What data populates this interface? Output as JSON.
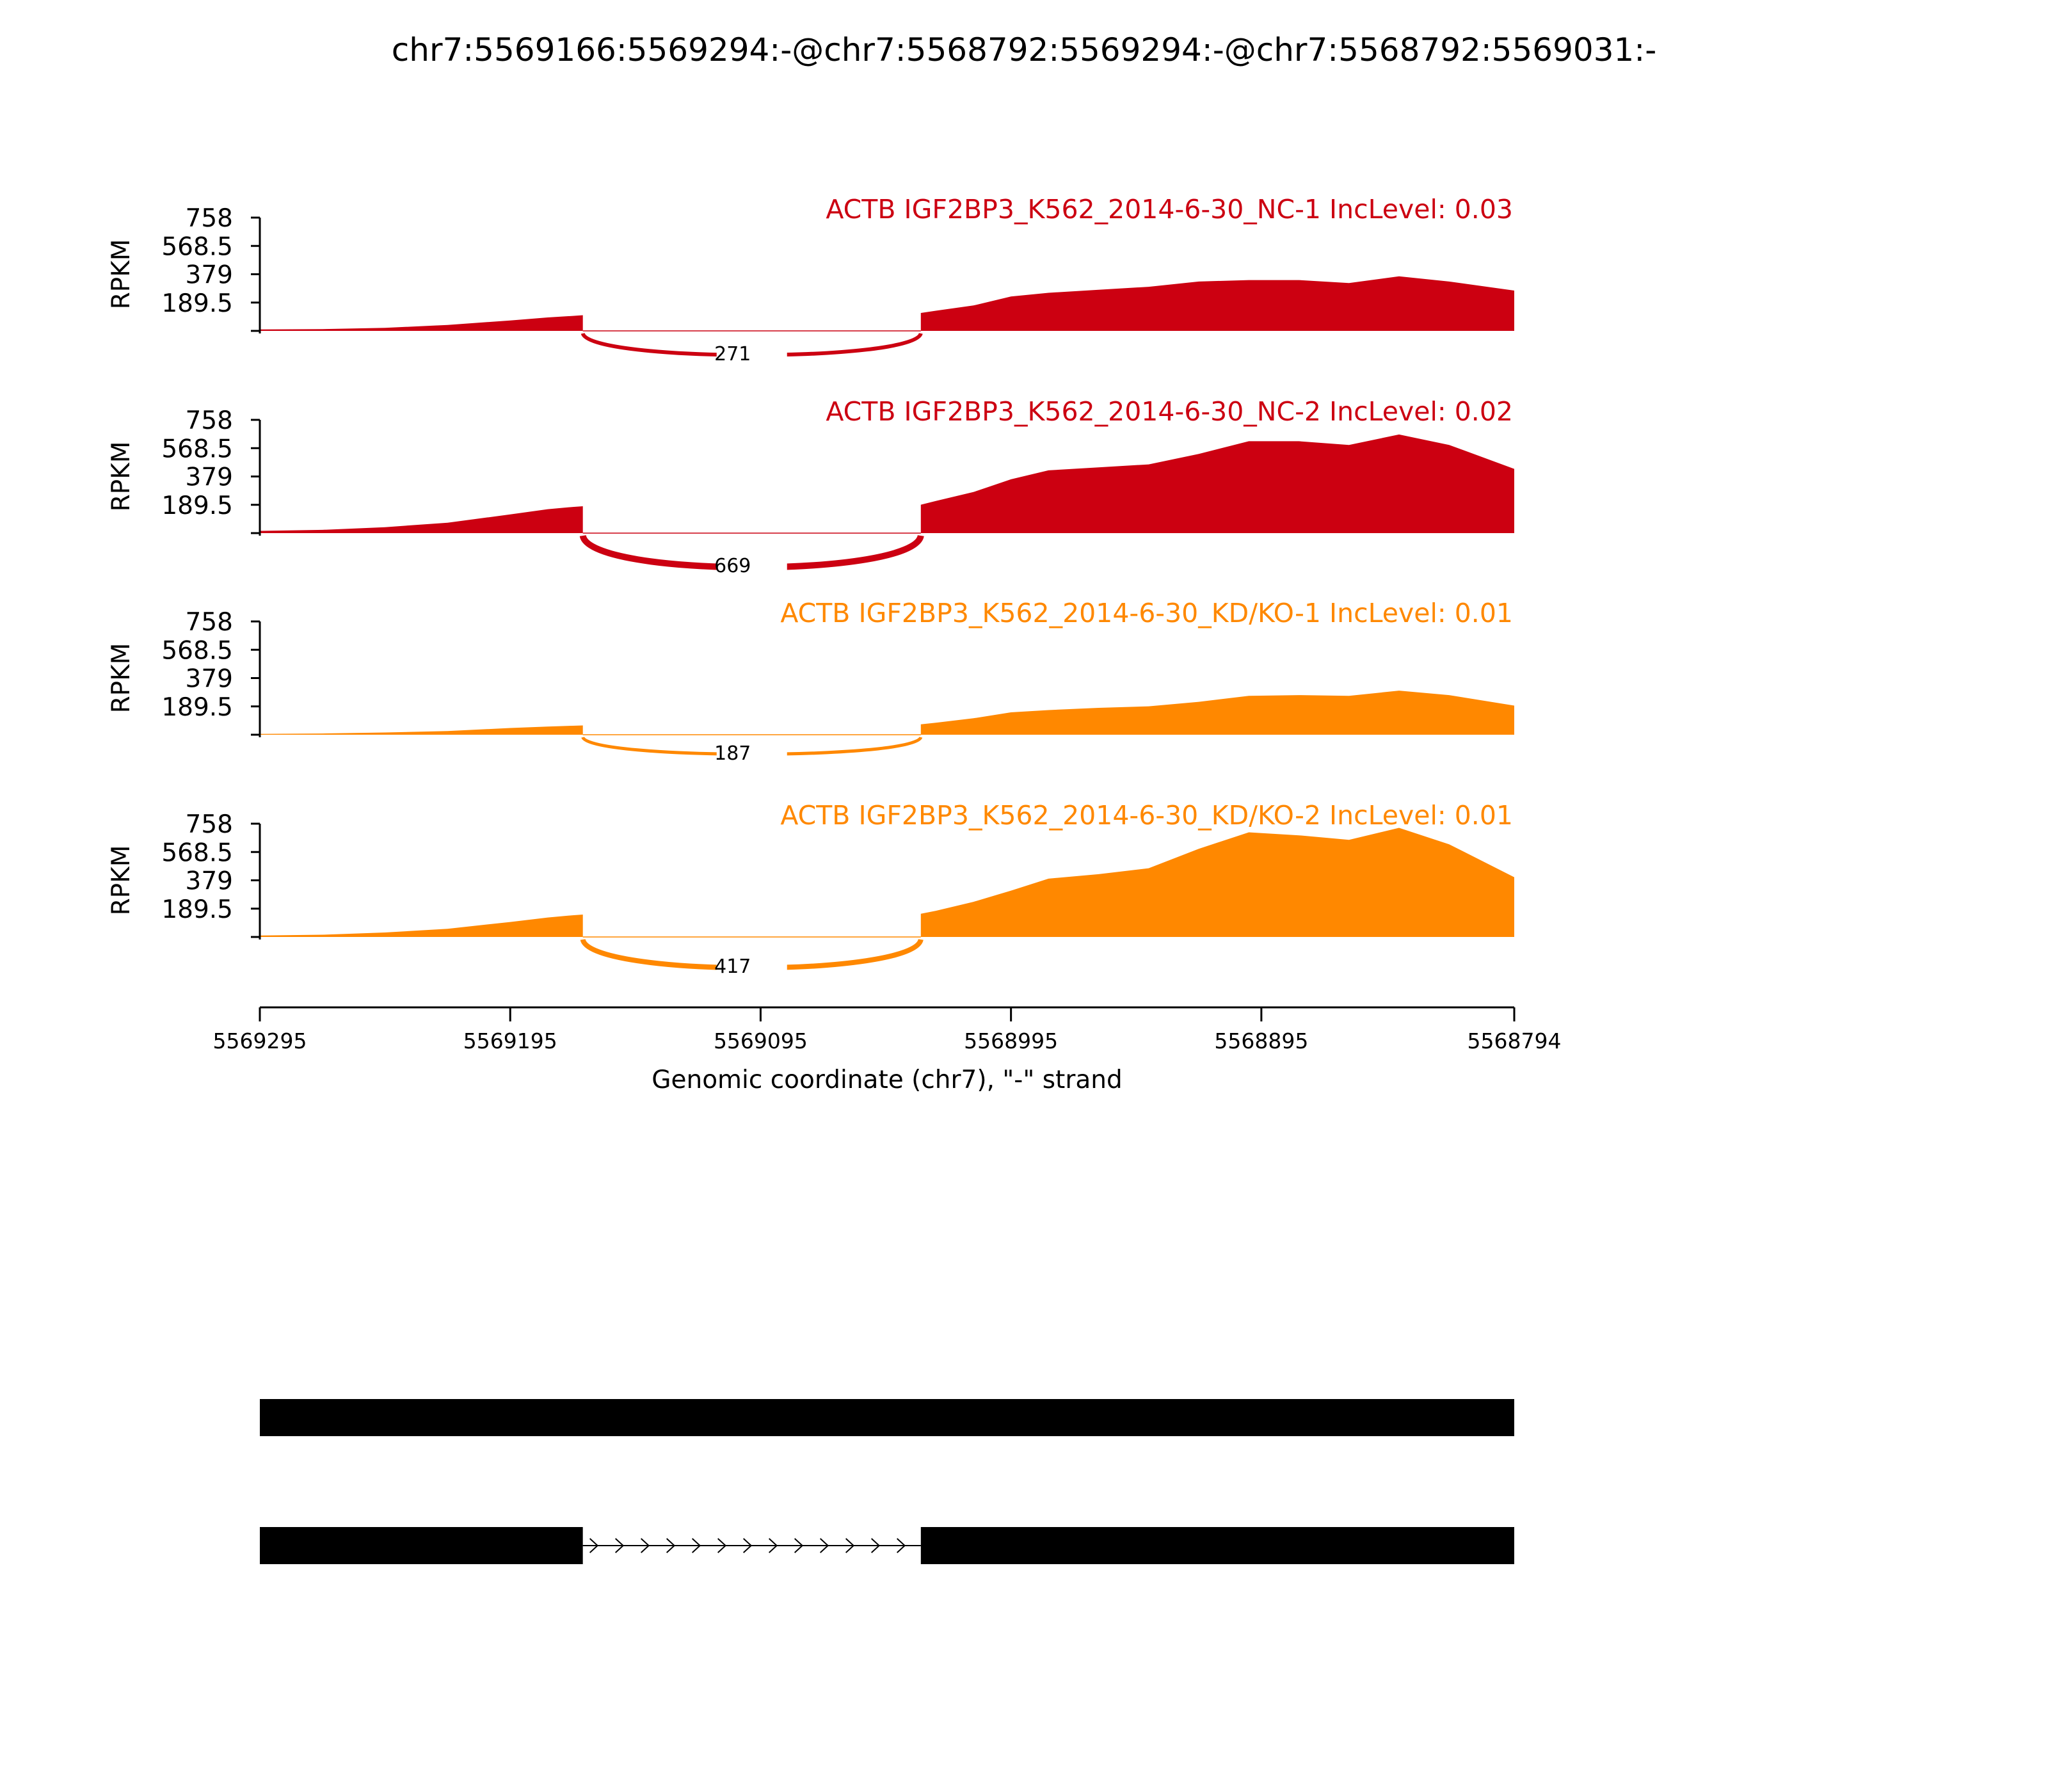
{
  "chart_data": {
    "type": "area",
    "title": "chr7:5569166:5569294:-@chr7:5568792:5569294:-@chr7:5568792:5569031:-",
    "xlabel": "Genomic coordinate (chr7), \"-\" strand",
    "ylabel": "RPKM",
    "x_ticks": [
      "5569295",
      "5569195",
      "5569095",
      "5568995",
      "5568895",
      "5568794"
    ],
    "xlim": [
      5569295,
      5568794
    ],
    "ylim": [
      0,
      758
    ],
    "y_ticks": [
      "189.5",
      "379",
      "568.5",
      "758"
    ],
    "colors": {
      "NC": "#CC0011",
      "KD": "#FF8800",
      "gene": "#000000"
    },
    "junction": {
      "donor": 5569166,
      "acceptor": 5569031
    },
    "x_samples": [
      5569295,
      5569270,
      5569245,
      5569220,
      5569195,
      5569180,
      5569170,
      5569166,
      5569031,
      5569025,
      5569010,
      5568995,
      5568980,
      5568960,
      5568940,
      5568920,
      5568900,
      5568880,
      5568860,
      5568840,
      5568820,
      5568794
    ],
    "panels": [
      {
        "label": "ACTB IGF2BP3_K562_2014-6-30_NC-1 IncLevel: 0.03",
        "group": "NC",
        "junction_count": "271",
        "values": [
          10,
          12,
          20,
          40,
          70,
          90,
          100,
          105,
          120,
          135,
          170,
          230,
          255,
          275,
          295,
          330,
          340,
          340,
          320,
          365,
          330,
          270
        ]
      },
      {
        "label": "ACTB IGF2BP3_K562_2014-6-30_NC-2 IncLevel: 0.02",
        "group": "NC",
        "junction_count": "669",
        "values": [
          15,
          22,
          40,
          70,
          125,
          160,
          175,
          180,
          190,
          215,
          275,
          360,
          420,
          440,
          460,
          530,
          615,
          615,
          590,
          660,
          590,
          430
        ]
      },
      {
        "label": "ACTB IGF2BP3_K562_2014-6-30_KD/KO-1 IncLevel: 0.01",
        "group": "KD",
        "junction_count": "187",
        "values": [
          5,
          8,
          15,
          25,
          45,
          55,
          60,
          62,
          70,
          80,
          110,
          150,
          165,
          180,
          190,
          220,
          260,
          265,
          260,
          295,
          265,
          195
        ]
      },
      {
        "label": "ACTB IGF2BP3_K562_2014-6-30_KD/KO-2 IncLevel: 0.01",
        "group": "KD",
        "junction_count": "417",
        "values": [
          10,
          15,
          30,
          55,
          100,
          130,
          145,
          150,
          155,
          175,
          235,
          310,
          390,
          420,
          460,
          590,
          700,
          680,
          650,
          730,
          620,
          400
        ]
      }
    ],
    "gene_models": [
      {
        "exons": [
          [
            5569295,
            5568794
          ]
        ]
      },
      {
        "exons": [
          [
            5569295,
            5569166
          ],
          [
            5569031,
            5568794
          ]
        ],
        "intron": [
          5569166,
          5569031
        ]
      }
    ]
  }
}
